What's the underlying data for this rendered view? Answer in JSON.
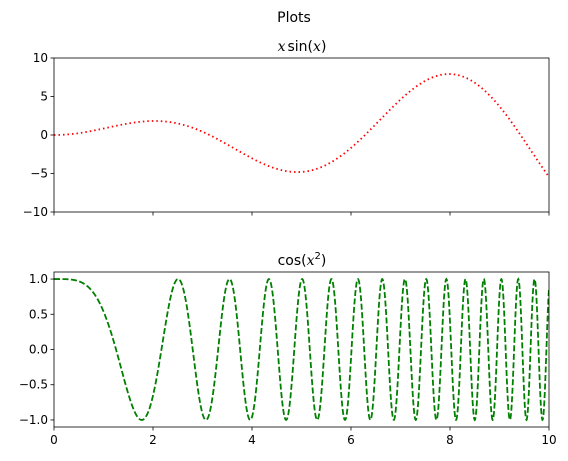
{
  "figure": {
    "suptitle": "Plots"
  },
  "chart_data": [
    {
      "type": "line",
      "title_parts": {
        "pre": "",
        "var": "x",
        "fn": "sin(",
        "arg": "x",
        "post": ")"
      },
      "title": "x sin(x)",
      "function": "x*sin(x)",
      "x_range": [
        0,
        10
      ],
      "xlim": [
        0,
        10
      ],
      "ylim": [
        -10,
        10
      ],
      "yticks": [
        10,
        5,
        0,
        -5,
        -10
      ],
      "xticks": [
        0,
        2,
        4,
        6,
        8,
        10
      ],
      "show_xtick_labels": false,
      "series": [
        {
          "color": "#ff0000",
          "style": "dotted",
          "x": [
            0,
            1,
            2,
            2.03,
            3,
            4,
            4.91,
            6,
            7,
            7.98,
            9,
            10
          ],
          "y": [
            0,
            0.84,
            1.82,
            1.82,
            0.42,
            -3.03,
            -4.81,
            -1.68,
            4.6,
            7.92,
            3.71,
            -5.44
          ]
        }
      ]
    },
    {
      "type": "line",
      "title": "cos(x^2)",
      "function": "cos(x^2)",
      "x_range": [
        0,
        10
      ],
      "xlim": [
        0,
        10
      ],
      "ylim": [
        -1.1,
        1.1
      ],
      "yticks": [
        "1.0",
        "0.5",
        "0.0",
        "−0.5",
        "−1.0"
      ],
      "ytick_values": [
        1,
        0.5,
        0,
        -0.5,
        -1
      ],
      "xticks": [
        "0",
        "2",
        "4",
        "6",
        "8",
        "10"
      ],
      "xtick_values": [
        0,
        2,
        4,
        6,
        8,
        10
      ],
      "series": [
        {
          "color": "#008000",
          "style": "dashed",
          "x": [
            0,
            1.77,
            2.51,
            3.07,
            3.54,
            3.96,
            4.34,
            10
          ],
          "y": [
            1,
            -1,
            1,
            -1,
            1,
            -1,
            1,
            0.86
          ]
        }
      ]
    }
  ],
  "axes_text": {
    "top_yticks": [
      "10",
      "5",
      "0",
      "−5",
      "−10"
    ],
    "title1_fn": "sin(",
    "title1_var": "x",
    "title1_arg": "x",
    "title1_close": ")",
    "title2_fn": "cos(",
    "title2_var": "x",
    "title2_exp": "2",
    "title2_close": ")"
  },
  "colors": {
    "line1": "#ff0000",
    "line2": "#008000"
  }
}
